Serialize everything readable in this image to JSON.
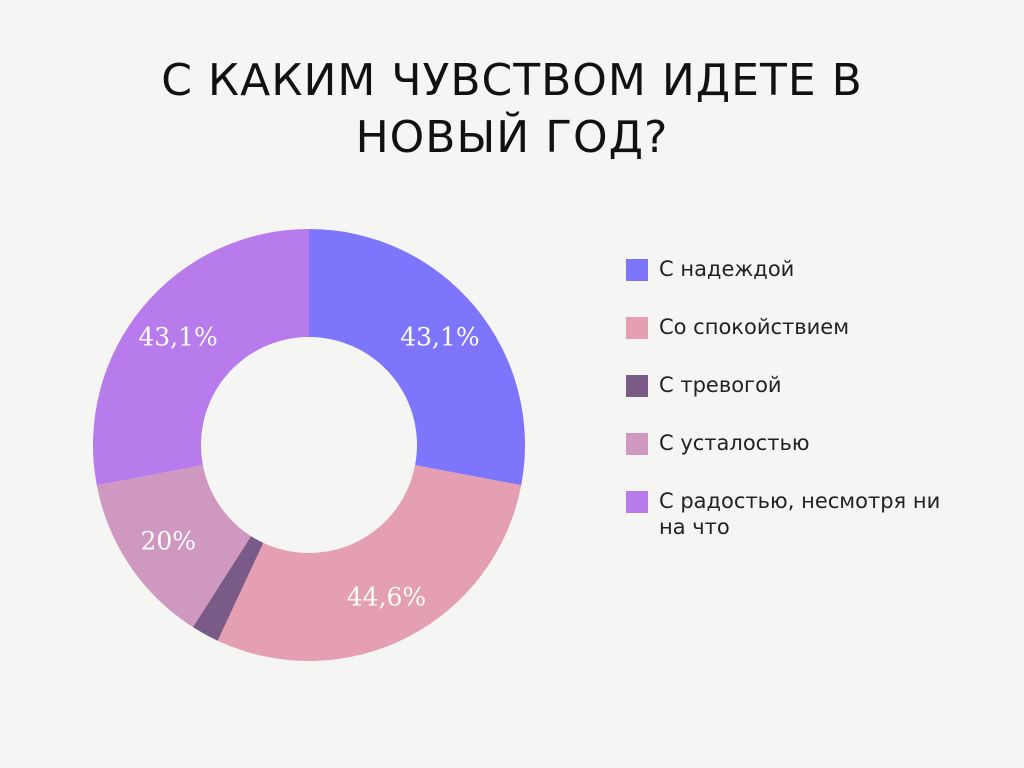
{
  "chart_data": {
    "type": "donut",
    "title_lines": [
      "С КАКИМ ЧУВСТВОМ ИДЕТЕ В",
      "НОВЫЙ ГОД?"
    ],
    "series": [
      {
        "name": "С надеждой",
        "value": 43.1,
        "label": "43,1%",
        "color": "#7d75fb"
      },
      {
        "name": "Со спокойствием",
        "value": 44.6,
        "label": "44,6%",
        "color": "#e4a0b2"
      },
      {
        "name": "С тревогой",
        "value": 3.2,
        "label": "",
        "color": "#7a5a86"
      },
      {
        "name": "С усталостью",
        "value": 20,
        "label": "20%",
        "color": "#cf98c0"
      },
      {
        "name": "С радостью, несмотря ни на что",
        "value": 43.1,
        "label": "43,1%",
        "color": "#b87bec"
      }
    ],
    "legend_position": "right"
  }
}
